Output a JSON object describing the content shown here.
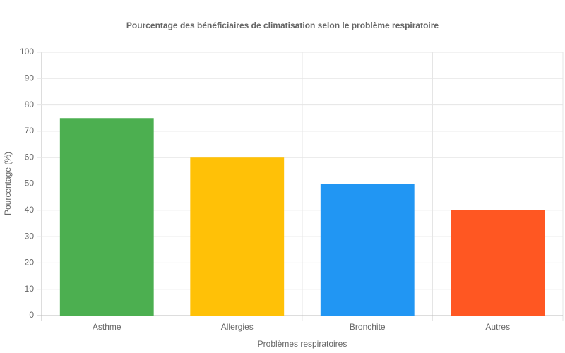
{
  "chart_data": {
    "type": "bar",
    "title": "Pourcentage des bénéficiaires de climatisation selon le problème respiratoire",
    "x_label": "Problèmes respiratoires",
    "y_label": "Pourcentage (%)",
    "categories": [
      "Asthme",
      "Allergies",
      "Bronchite",
      "Autres"
    ],
    "values": [
      75,
      60,
      50,
      40
    ],
    "colors": [
      "#4caf50",
      "#ffc107",
      "#2196f3",
      "#ff5722"
    ],
    "ylim": [
      0,
      100
    ],
    "yticks": [
      0,
      10,
      20,
      30,
      40,
      50,
      60,
      70,
      80,
      90,
      100
    ],
    "grid": true
  }
}
